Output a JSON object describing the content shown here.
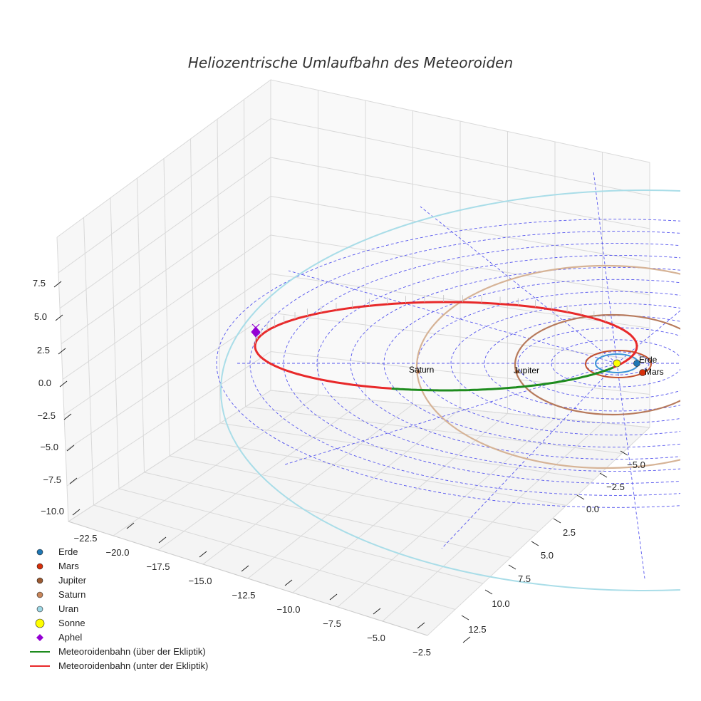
{
  "chart_data": {
    "type": "line",
    "projection": "3d",
    "title": "Heliozentrische Umlaufbahn des Meteoroiden",
    "xlabel": "",
    "ylabel": "",
    "zlabel": "",
    "x_ticks": [
      "−22.5",
      "−20.0",
      "−17.5",
      "−15.0",
      "−12.5",
      "−10.0",
      "−7.5",
      "−5.0",
      "−2.5"
    ],
    "y_ticks": [
      "−5.0",
      "−2.5",
      "0.0",
      "2.5",
      "5.0",
      "7.5",
      "10.0",
      "12.5"
    ],
    "z_ticks": [
      "7.5",
      "5.0",
      "2.5",
      "0.0",
      "−2.5",
      "−5.0",
      "−7.5",
      "−10.0"
    ],
    "planets": [
      {
        "name": "Erde",
        "color": "#1f77b4",
        "orbit_color": "#3a93d6",
        "label": "Erde"
      },
      {
        "name": "Mars",
        "color": "#d62f0a",
        "orbit_color": "#c4502e",
        "label": "Mars"
      },
      {
        "name": "Jupiter",
        "color": "#9c5a32",
        "orbit_color": "#b77a5c",
        "label": "Jupiter"
      },
      {
        "name": "Saturn",
        "color": "#c8865a",
        "orbit_color": "#d6b396",
        "label": "Saturn"
      },
      {
        "name": "Uran",
        "color": "#9ed8e6",
        "orbit_color": "#a9dde8"
      }
    ],
    "sun": {
      "name": "Sonne",
      "color": "#ffff00"
    },
    "aphel": {
      "name": "Aphel",
      "color": "#9400d3"
    },
    "meteoroid_orbit": [
      {
        "name": "Meteoroidenbahn (über der Ekliptik)",
        "color": "#1e8c1e"
      },
      {
        "name": "Meteoroidenbahn (unter der Ekliptik)",
        "color": "#e8292a"
      }
    ],
    "grid": true,
    "legend_position": "bottom-left"
  }
}
